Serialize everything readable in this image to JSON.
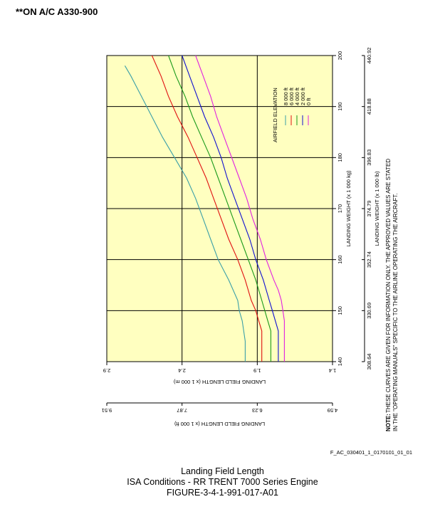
{
  "header": {
    "aircraft_note": "**ON A/C A330-900"
  },
  "chart_data": {
    "type": "line",
    "title": "",
    "xlabel": "LANDING WEIGHT (x 1 000 kg)",
    "x2label": "LANDING WEIGHT (x 1 000 lb)",
    "ylabel": "LANDING FIELD LENGTH (x 1 000 m)",
    "y2label": "LANDING FIELD LENGTH (x 1 000 ft)",
    "xlim": [
      140,
      200
    ],
    "ylim": [
      1.4,
      2.9
    ],
    "x_ticks": [
      "140",
      "150",
      "160",
      "170",
      "180",
      "190",
      "200"
    ],
    "x2_ticks": [
      "308.64",
      "330.69",
      "352.74",
      "374.79",
      "396.83",
      "418.88",
      "440.92"
    ],
    "y_ticks": [
      "1.4",
      "1.9",
      "2.4",
      "2.9"
    ],
    "y2_ticks": [
      "4.59",
      "6.23",
      "7.87",
      "9.51"
    ],
    "grid": true,
    "legend_title": "AIRFIELD ELEVATION",
    "legend_placement": "top-right",
    "series": [
      {
        "name": "8 000 ft",
        "color": "#3a9fa8",
        "x": [
          140,
          144,
          148,
          150,
          152,
          156,
          160,
          164,
          168,
          172,
          176,
          180,
          184,
          188,
          192,
          196,
          198
        ],
        "y": [
          1.98,
          1.98,
          2.0,
          2.02,
          2.03,
          2.09,
          2.16,
          2.21,
          2.26,
          2.31,
          2.37,
          2.45,
          2.53,
          2.6,
          2.67,
          2.74,
          2.78
        ]
      },
      {
        "name": "6 000 ft",
        "color": "#e01010",
        "x": [
          140,
          144,
          146,
          148,
          150,
          152,
          156,
          160,
          164,
          168,
          172,
          176,
          180,
          184,
          188,
          192,
          196,
          200
        ],
        "y": [
          1.87,
          1.87,
          1.87,
          1.89,
          1.91,
          1.94,
          1.98,
          2.03,
          2.09,
          2.14,
          2.19,
          2.24,
          2.3,
          2.36,
          2.43,
          2.49,
          2.54,
          2.6
        ]
      },
      {
        "name": "4 000 ft",
        "color": "#1a9a1a",
        "x": [
          140,
          144,
          146,
          148,
          150,
          152,
          156,
          160,
          164,
          168,
          172,
          176,
          180,
          184,
          188,
          192,
          196,
          200
        ],
        "y": [
          1.81,
          1.81,
          1.81,
          1.83,
          1.85,
          1.87,
          1.91,
          1.96,
          2.01,
          2.06,
          2.11,
          2.16,
          2.21,
          2.27,
          2.33,
          2.38,
          2.44,
          2.49
        ]
      },
      {
        "name": "2 000 ft",
        "color": "#1010d0",
        "x": [
          140,
          144,
          146,
          148,
          150,
          152,
          156,
          160,
          164,
          168,
          172,
          176,
          180,
          184,
          188,
          192,
          196,
          200
        ],
        "y": [
          1.76,
          1.76,
          1.76,
          1.78,
          1.8,
          1.82,
          1.86,
          1.91,
          1.95,
          2.0,
          2.05,
          2.1,
          2.14,
          2.19,
          2.25,
          2.3,
          2.35,
          2.4
        ]
      },
      {
        "name": "0 ft",
        "color": "#e020e0",
        "x": [
          140,
          144,
          146,
          148,
          150,
          152,
          154,
          156,
          160,
          164,
          168,
          172,
          176,
          180,
          184,
          188,
          192,
          196,
          200
        ],
        "y": [
          1.72,
          1.72,
          1.72,
          1.72,
          1.73,
          1.74,
          1.76,
          1.79,
          1.84,
          1.88,
          1.93,
          1.97,
          2.02,
          2.07,
          2.12,
          2.17,
          2.21,
          2.26,
          2.31
        ]
      }
    ]
  },
  "note": {
    "title": "NOTE:",
    "line1": "THESE CURVES ARE GIVEN FOR INFORMATION ONLY. THE APPROVED VALUES ARE STATED",
    "line2": "IN THE \"OPERATING MANUALS\" SPECIFIC TO THE AIRLINE OPERATING THE AIRCRAFT."
  },
  "reference_id": "F_AC_030401_1_0170101_01_01",
  "caption": {
    "line1": "Landing Field Length",
    "line2": "ISA Conditions - RR TRENT 7000 Series Engine",
    "line3": "FIGURE-3-4-1-991-017-A01"
  },
  "colors": {
    "plot_background": "#ffffc0",
    "grid": "#000000"
  }
}
